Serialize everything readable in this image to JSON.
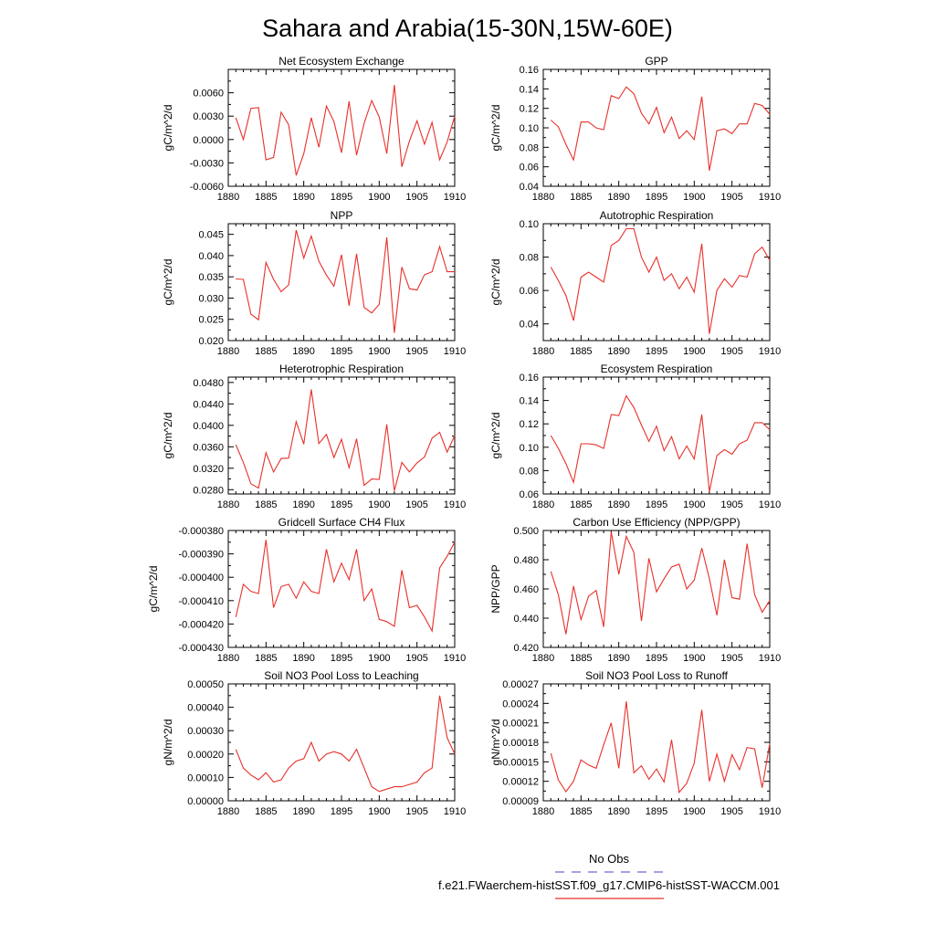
{
  "figure": {
    "title": "Sahara and Arabia(15-30N,15W-60E)",
    "legend": {
      "obs_label": "No Obs",
      "obs_color": "#6b6bd6",
      "model_label": "f.e21.FWaerchem-histSST.f09_g17.CMIP6-histSST-WACCM.001",
      "model_color": "#e8302a"
    }
  },
  "chart_data": [
    {
      "type": "line",
      "title": "Net Ecosystem Exchange",
      "ylabel": "gC/m^2/d",
      "xlim": [
        1880,
        1910
      ],
      "ylim": [
        -0.006,
        0.009
      ],
      "yticks": [
        -0.006,
        -0.003,
        0.0,
        0.003,
        0.006
      ],
      "yticklabels": [
        "-0.0060",
        "-0.0030",
        "0.0000",
        "0.0030",
        "0.0060"
      ],
      "xticks": [
        1880,
        1885,
        1890,
        1895,
        1900,
        1905,
        1910
      ],
      "x": [
        1881,
        1882,
        1883,
        1884,
        1885,
        1886,
        1887,
        1888,
        1889,
        1890,
        1891,
        1892,
        1893,
        1894,
        1895,
        1896,
        1897,
        1898,
        1899,
        1900,
        1901,
        1902,
        1903,
        1904,
        1905,
        1906,
        1907,
        1908,
        1909,
        1910
      ],
      "series": [
        {
          "values": [
            0.0028,
            0.0,
            0.004,
            0.0041,
            -0.0026,
            -0.0023,
            0.0035,
            0.0019,
            -0.0046,
            -0.0018,
            0.0028,
            -0.001,
            0.0043,
            0.0023,
            -0.0017,
            0.0049,
            -0.002,
            0.0021,
            0.005,
            0.0029,
            -0.0018,
            0.007,
            -0.0035,
            -0.0002,
            0.0024,
            -0.0006,
            0.0022,
            -0.0026,
            -0.0003,
            0.003
          ],
          "color": "#e8302a"
        }
      ]
    },
    {
      "type": "line",
      "title": "GPP",
      "ylabel": "gC/m^2/d",
      "xlim": [
        1880,
        1910
      ],
      "ylim": [
        0.04,
        0.16
      ],
      "yticks": [
        0.04,
        0.06,
        0.08,
        0.1,
        0.12,
        0.14,
        0.16
      ],
      "yticklabels": [
        "0.04",
        "0.06",
        "0.08",
        "0.10",
        "0.12",
        "0.14",
        "0.16"
      ],
      "xticks": [
        1880,
        1885,
        1890,
        1895,
        1900,
        1905,
        1910
      ],
      "x": [
        1881,
        1882,
        1883,
        1884,
        1885,
        1886,
        1887,
        1888,
        1889,
        1890,
        1891,
        1892,
        1893,
        1894,
        1895,
        1896,
        1897,
        1898,
        1899,
        1900,
        1901,
        1902,
        1903,
        1904,
        1905,
        1906,
        1907,
        1908,
        1909,
        1910
      ],
      "series": [
        {
          "values": [
            0.108,
            0.101,
            0.083,
            0.067,
            0.106,
            0.106,
            0.1,
            0.098,
            0.133,
            0.13,
            0.142,
            0.135,
            0.115,
            0.104,
            0.121,
            0.095,
            0.111,
            0.089,
            0.097,
            0.088,
            0.132,
            0.056,
            0.097,
            0.099,
            0.094,
            0.104,
            0.104,
            0.125,
            0.123,
            0.114
          ],
          "color": "#e8302a"
        }
      ]
    },
    {
      "type": "line",
      "title": "NPP",
      "ylabel": "gC/m^2/d",
      "xlim": [
        1880,
        1910
      ],
      "ylim": [
        0.02,
        0.0475
      ],
      "yticks": [
        0.02,
        0.025,
        0.03,
        0.035,
        0.04,
        0.045
      ],
      "yticklabels": [
        "0.020",
        "0.025",
        "0.030",
        "0.035",
        "0.040",
        "0.045"
      ],
      "xticks": [
        1880,
        1885,
        1890,
        1895,
        1900,
        1905,
        1910
      ],
      "x": [
        1881,
        1882,
        1883,
        1884,
        1885,
        1886,
        1887,
        1888,
        1889,
        1890,
        1891,
        1892,
        1893,
        1894,
        1895,
        1896,
        1897,
        1898,
        1899,
        1900,
        1901,
        1902,
        1903,
        1904,
        1905,
        1906,
        1907,
        1908,
        1909,
        1910
      ],
      "series": [
        {
          "values": [
            0.0345,
            0.0344,
            0.0262,
            0.0249,
            0.0384,
            0.0344,
            0.0315,
            0.0331,
            0.046,
            0.0394,
            0.0446,
            0.0387,
            0.0354,
            0.0328,
            0.0402,
            0.0282,
            0.0404,
            0.0278,
            0.0265,
            0.0285,
            0.0443,
            0.0218,
            0.0373,
            0.0322,
            0.0319,
            0.0355,
            0.0362,
            0.0421,
            0.0362,
            0.0362
          ],
          "color": "#e8302a"
        }
      ]
    },
    {
      "type": "line",
      "title": "Autotrophic Respiration",
      "ylabel": "gC/m^2/d",
      "xlim": [
        1880,
        1910
      ],
      "ylim": [
        0.03,
        0.1
      ],
      "yticks": [
        0.04,
        0.06,
        0.08,
        0.1
      ],
      "yticklabels": [
        "0.04",
        "0.06",
        "0.08",
        "0.10"
      ],
      "xticks": [
        1880,
        1885,
        1890,
        1895,
        1900,
        1905,
        1910
      ],
      "x": [
        1881,
        1882,
        1883,
        1884,
        1885,
        1886,
        1887,
        1888,
        1889,
        1890,
        1891,
        1892,
        1893,
        1894,
        1895,
        1896,
        1897,
        1898,
        1899,
        1900,
        1901,
        1902,
        1903,
        1904,
        1905,
        1906,
        1907,
        1908,
        1909,
        1910
      ],
      "series": [
        {
          "values": [
            0.074,
            0.066,
            0.057,
            0.042,
            0.068,
            0.071,
            0.068,
            0.065,
            0.087,
            0.09,
            0.097,
            0.097,
            0.08,
            0.071,
            0.08,
            0.066,
            0.07,
            0.061,
            0.068,
            0.059,
            0.088,
            0.034,
            0.06,
            0.067,
            0.062,
            0.069,
            0.068,
            0.082,
            0.086,
            0.078
          ],
          "color": "#e8302a"
        }
      ]
    },
    {
      "type": "line",
      "title": "Heterotrophic Respiration",
      "ylabel": "gC/m^2/d",
      "xlim": [
        1880,
        1910
      ],
      "ylim": [
        0.0272,
        0.049
      ],
      "yticks": [
        0.028,
        0.032,
        0.036,
        0.04,
        0.044,
        0.048
      ],
      "yticklabels": [
        "0.0280",
        "0.0320",
        "0.0360",
        "0.0400",
        "0.0440",
        "0.0480"
      ],
      "xticks": [
        1880,
        1885,
        1890,
        1895,
        1900,
        1905,
        1910
      ],
      "x": [
        1881,
        1882,
        1883,
        1884,
        1885,
        1886,
        1887,
        1888,
        1889,
        1890,
        1891,
        1892,
        1893,
        1894,
        1895,
        1896,
        1897,
        1898,
        1899,
        1900,
        1901,
        1902,
        1903,
        1904,
        1905,
        1906,
        1907,
        1908,
        1909,
        1910
      ],
      "series": [
        {
          "values": [
            0.0364,
            0.0331,
            0.0291,
            0.0283,
            0.0349,
            0.0313,
            0.0338,
            0.0339,
            0.0407,
            0.0365,
            0.0467,
            0.0366,
            0.0383,
            0.034,
            0.0374,
            0.0321,
            0.0375,
            0.0288,
            0.03,
            0.0299,
            0.0402,
            0.0278,
            0.0331,
            0.0313,
            0.033,
            0.0341,
            0.0376,
            0.0387,
            0.035,
            0.0381
          ],
          "color": "#e8302a"
        }
      ]
    },
    {
      "type": "line",
      "title": "Ecosystem Respiration",
      "ylabel": "gC/m^2/d",
      "xlim": [
        1880,
        1910
      ],
      "ylim": [
        0.06,
        0.16
      ],
      "yticks": [
        0.06,
        0.08,
        0.1,
        0.12,
        0.14,
        0.16
      ],
      "yticklabels": [
        "0.06",
        "0.08",
        "0.10",
        "0.12",
        "0.14",
        "0.16"
      ],
      "xticks": [
        1880,
        1885,
        1890,
        1895,
        1900,
        1905,
        1910
      ],
      "x": [
        1881,
        1882,
        1883,
        1884,
        1885,
        1886,
        1887,
        1888,
        1889,
        1890,
        1891,
        1892,
        1893,
        1894,
        1895,
        1896,
        1897,
        1898,
        1899,
        1900,
        1901,
        1902,
        1903,
        1904,
        1905,
        1906,
        1907,
        1908,
        1909,
        1910
      ],
      "series": [
        {
          "values": [
            0.11,
            0.099,
            0.086,
            0.07,
            0.103,
            0.103,
            0.102,
            0.099,
            0.128,
            0.127,
            0.144,
            0.134,
            0.119,
            0.105,
            0.118,
            0.097,
            0.109,
            0.09,
            0.101,
            0.09,
            0.128,
            0.062,
            0.093,
            0.098,
            0.094,
            0.103,
            0.106,
            0.121,
            0.121,
            0.115
          ],
          "color": "#e8302a"
        }
      ]
    },
    {
      "type": "line",
      "title": "Gridcell Surface CH4 Flux",
      "ylabel": "gC/m^2/d",
      "xlim": [
        1880,
        1910
      ],
      "ylim": [
        -0.00043,
        -0.00038
      ],
      "yticks": [
        -0.00043,
        -0.00042,
        -0.00041,
        -0.0004,
        -0.00039,
        -0.00038
      ],
      "yticklabels": [
        "-0.000430",
        "-0.000420",
        "-0.000410",
        "-0.000400",
        "-0.000390",
        "-0.000380"
      ],
      "xticks": [
        1880,
        1885,
        1890,
        1895,
        1900,
        1905,
        1910
      ],
      "x": [
        1881,
        1882,
        1883,
        1884,
        1885,
        1886,
        1887,
        1888,
        1889,
        1890,
        1891,
        1892,
        1893,
        1894,
        1895,
        1896,
        1897,
        1898,
        1899,
        1900,
        1901,
        1902,
        1903,
        1904,
        1905,
        1906,
        1907,
        1908,
        1909,
        1910
      ],
      "series": [
        {
          "values": [
            -0.000417,
            -0.000403,
            -0.000406,
            -0.000407,
            -0.000384,
            -0.000413,
            -0.000404,
            -0.000403,
            -0.000409,
            -0.000402,
            -0.000406,
            -0.000407,
            -0.000388,
            -0.000402,
            -0.000394,
            -0.000401,
            -0.000388,
            -0.00041,
            -0.000405,
            -0.000418,
            -0.000419,
            -0.000421,
            -0.000397,
            -0.000413,
            -0.000412,
            -0.000417,
            -0.000423,
            -0.000396,
            -0.000391,
            -0.000385
          ],
          "color": "#e8302a"
        }
      ]
    },
    {
      "type": "line",
      "title": "Carbon Use Efficiency (NPP/GPP)",
      "ylabel": "NPP/GPP",
      "xlim": [
        1880,
        1910
      ],
      "ylim": [
        0.42,
        0.5
      ],
      "yticks": [
        0.42,
        0.44,
        0.46,
        0.48,
        0.5
      ],
      "yticklabels": [
        "0.420",
        "0.440",
        "0.460",
        "0.480",
        "0.500"
      ],
      "xticks": [
        1880,
        1885,
        1890,
        1895,
        1900,
        1905,
        1910
      ],
      "x": [
        1881,
        1882,
        1883,
        1884,
        1885,
        1886,
        1887,
        1888,
        1889,
        1890,
        1891,
        1892,
        1893,
        1894,
        1895,
        1896,
        1897,
        1898,
        1899,
        1900,
        1901,
        1902,
        1903,
        1904,
        1905,
        1906,
        1907,
        1908,
        1909,
        1910
      ],
      "series": [
        {
          "values": [
            0.472,
            0.456,
            0.429,
            0.462,
            0.439,
            0.455,
            0.459,
            0.434,
            0.499,
            0.47,
            0.496,
            0.485,
            0.438,
            0.481,
            0.458,
            0.467,
            0.475,
            0.477,
            0.46,
            0.466,
            0.488,
            0.467,
            0.442,
            0.48,
            0.454,
            0.453,
            0.491,
            0.456,
            0.444,
            0.452
          ],
          "color": "#e8302a"
        }
      ]
    },
    {
      "type": "line",
      "title": "Soil NO3 Pool Loss to Leaching",
      "ylabel": "gN/m^2/d",
      "xlim": [
        1880,
        1910
      ],
      "ylim": [
        0.0,
        0.0005
      ],
      "yticks": [
        0.0,
        0.0001,
        0.0002,
        0.0003,
        0.0004,
        0.0005
      ],
      "yticklabels": [
        "0.00000",
        "0.00010",
        "0.00020",
        "0.00030",
        "0.00040",
        "0.00050"
      ],
      "xticks": [
        1880,
        1885,
        1890,
        1895,
        1900,
        1905,
        1910
      ],
      "x": [
        1881,
        1882,
        1883,
        1884,
        1885,
        1886,
        1887,
        1888,
        1889,
        1890,
        1891,
        1892,
        1893,
        1894,
        1895,
        1896,
        1897,
        1898,
        1899,
        1900,
        1901,
        1902,
        1903,
        1904,
        1905,
        1906,
        1907,
        1908,
        1909,
        1910
      ],
      "series": [
        {
          "values": [
            0.00022,
            0.00014,
            0.00011,
            9e-05,
            0.00012,
            8e-05,
            9e-05,
            0.00014,
            0.00017,
            0.00018,
            0.00025,
            0.00017,
            0.0002,
            0.00021,
            0.0002,
            0.00017,
            0.00022,
            0.00014,
            6e-05,
            4e-05,
            5e-05,
            6e-05,
            6e-05,
            7e-05,
            8e-05,
            0.00012,
            0.00014,
            0.00045,
            0.00027,
            0.0002
          ],
          "color": "#e8302a"
        }
      ]
    },
    {
      "type": "line",
      "title": "Soil NO3 Pool Loss to Runoff",
      "ylabel": "gN/m^2/d",
      "xlim": [
        1880,
        1910
      ],
      "ylim": [
        9e-05,
        0.00027
      ],
      "yticks": [
        9e-05,
        0.00012,
        0.00015,
        0.00018,
        0.00021,
        0.00024,
        0.00027
      ],
      "yticklabels": [
        "0.00009",
        "0.00012",
        "0.00015",
        "0.00018",
        "0.00021",
        "0.00024",
        "0.00027"
      ],
      "xticks": [
        1880,
        1885,
        1890,
        1895,
        1900,
        1905,
        1910
      ],
      "x": [
        1881,
        1882,
        1883,
        1884,
        1885,
        1886,
        1887,
        1888,
        1889,
        1890,
        1891,
        1892,
        1893,
        1894,
        1895,
        1896,
        1897,
        1898,
        1899,
        1900,
        1901,
        1902,
        1903,
        1904,
        1905,
        1906,
        1907,
        1908,
        1909,
        1910
      ],
      "series": [
        {
          "values": [
            0.000163,
            0.000122,
            0.000104,
            0.00012,
            0.000153,
            0.000145,
            0.00014,
            0.000176,
            0.00021,
            0.00014,
            0.000243,
            0.000133,
            0.000144,
            0.000123,
            0.000139,
            0.000119,
            0.000184,
            0.000103,
            0.000117,
            0.000148,
            0.00023,
            0.00012,
            0.000162,
            0.00012,
            0.000161,
            0.000138,
            0.000172,
            0.00017,
            0.00011,
            0.000178
          ],
          "color": "#e8302a"
        }
      ]
    }
  ]
}
